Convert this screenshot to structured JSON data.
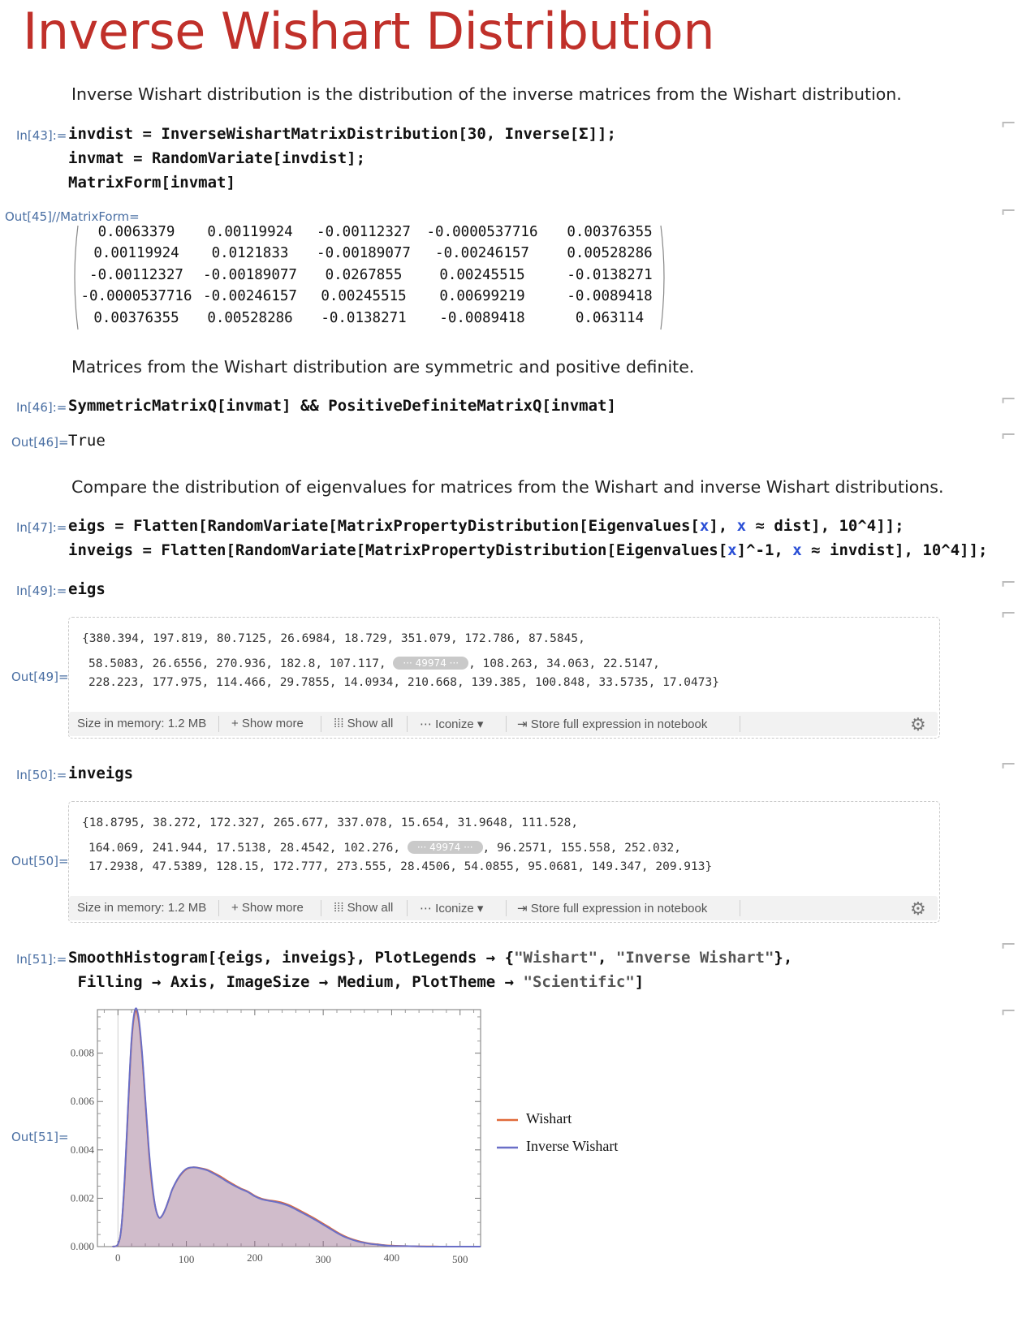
{
  "title": "Inverse Wishart Distribution",
  "texts": {
    "t1": "Inverse Wishart distribution is the distribution of the inverse matrices from the Wishart distribution.",
    "t2": "Matrices from the Wishart distribution are symmetric and positive definite.",
    "t3": "Compare the distribution of eigenvalues for matrices from the Wishart and inverse Wishart distributions."
  },
  "labels": {
    "in43": "In[43]:=",
    "out45": "Out[45]//MatrixForm=",
    "in46": "In[46]:=",
    "out46": "Out[46]=",
    "in47": "In[47]:=",
    "in49": "In[49]:=",
    "out49": "Out[49]=",
    "in50": "In[50]:=",
    "out50": "Out[50]=",
    "in51": "In[51]:=",
    "out51": "Out[51]="
  },
  "code": {
    "c43a": "invdist = InverseWishartMatrixDistribution[30, Inverse[Σ]];",
    "c43b": "invmat = RandomVariate[invdist];",
    "c43c": "MatrixForm[invmat]",
    "c46": "SymmetricMatrixQ[invmat] && PositiveDefiniteMatrixQ[invmat]",
    "out46": "True",
    "c47a_1": "eigs = Flatten[RandomVariate[MatrixPropertyDistribution[Eigenvalues[",
    "c47a_x1": "x",
    "c47a_2": "], ",
    "c47a_x2": "x",
    "c47a_3": " ≈ dist], 10^4]];",
    "c47b_1": "inveigs = Flatten[RandomVariate[MatrixPropertyDistribution[Eigenvalues[",
    "c47b_x1": "x",
    "c47b_2": "]^-1, ",
    "c47b_x2": "x",
    "c47b_3": " ≈ invdist], 10^4]];",
    "c49": "eigs",
    "c50": "inveigs",
    "c51a_1": "SmoothHistogram[{eigs, inveigs}, PlotLegends → {",
    "c51a_s1": "\"Wishart\"",
    "c51a_2": ", ",
    "c51a_s2": "\"Inverse Wishart\"",
    "c51a_3": "},",
    "c51b_1": " Filling → Axis, ImageSize → Medium, PlotTheme → ",
    "c51b_s": "\"Scientific\"",
    "c51b_2": "]"
  },
  "matrix": [
    [
      "0.0063379",
      "0.00119924",
      "-0.00112327",
      "-0.0000537716",
      "0.00376355"
    ],
    [
      "0.00119924",
      "0.0121833",
      "-0.00189077",
      "-0.00246157",
      "0.00528286"
    ],
    [
      "-0.00112327",
      "-0.00189077",
      "0.0267855",
      "0.00245515",
      "-0.0138271"
    ],
    [
      "-0.0000537716",
      "-0.00246157",
      "0.00245515",
      "0.00699219",
      "-0.0089418"
    ],
    [
      "0.00376355",
      "0.00528286",
      "-0.0138271",
      "-0.0089418",
      "0.063114"
    ]
  ],
  "eigs_summary": {
    "line1": "{380.394, 197.819, 80.7125, 26.6984, 18.729, 351.079, 172.786, 87.5845,",
    "line2a": "58.5083, 26.6556, 270.936, 182.8, 107.117, ",
    "pill": "··· 49974 ···",
    "line2b": ", 108.263, 34.063, 22.5147,",
    "line3": "228.223, 177.975, 114.466, 29.7855, 14.0934, 210.668, 139.385, 100.848, 33.5735, 17.0473}"
  },
  "inveigs_summary": {
    "line1": "{18.8795, 38.272, 172.327, 265.677, 337.078, 15.654, 31.9648, 111.528,",
    "line2a": "164.069, 241.944, 17.5138, 28.4542, 102.276, ",
    "pill": "··· 49974 ···",
    "line2b": ", 96.2571, 155.558, 252.032,",
    "line3": "17.2938, 47.5389, 128.15, 172.777, 273.555, 28.4506, 54.0855, 95.0681, 149.347, 209.913}"
  },
  "toolbar": {
    "size": "Size in memory: 1.2 MB",
    "show_more": "+ Show more",
    "show_all": "⁞⁞⁞ Show all",
    "iconize": "⋯ Iconize ▾",
    "store": "⇥ Store full expression in notebook",
    "gear": "⚙"
  },
  "chart_data": {
    "type": "area",
    "title": "",
    "xlabel": "",
    "ylabel": "",
    "xlim": [
      -30,
      530
    ],
    "ylim": [
      0,
      0.0098
    ],
    "x_ticks": [
      0,
      100,
      200,
      300,
      400,
      500
    ],
    "y_ticks": [
      "0.000",
      "0.002",
      "0.004",
      "0.006",
      "0.008"
    ],
    "y_tick_values": [
      0,
      0.002,
      0.004,
      0.006,
      0.008
    ],
    "legend_position": "right",
    "filling": "Axis",
    "series": [
      {
        "name": "Wishart",
        "color": "#e06a3a",
        "x": [
          -8,
          0,
          5,
          10,
          15,
          20,
          25,
          30,
          35,
          40,
          45,
          50,
          55,
          60,
          65,
          70,
          75,
          80,
          90,
          100,
          110,
          120,
          130,
          140,
          150,
          160,
          170,
          180,
          190,
          200,
          210,
          220,
          230,
          240,
          250,
          260,
          270,
          280,
          290,
          300,
          310,
          320,
          330,
          340,
          350,
          360,
          370,
          380,
          390,
          400,
          420,
          440,
          460,
          480,
          500,
          530
        ],
        "y": [
          0.0,
          0.0001,
          0.0008,
          0.0028,
          0.0058,
          0.0085,
          0.0097,
          0.0094,
          0.008,
          0.006,
          0.004,
          0.0025,
          0.0016,
          0.0012,
          0.0013,
          0.0016,
          0.002,
          0.0024,
          0.0029,
          0.0032,
          0.00328,
          0.00325,
          0.00318,
          0.00305,
          0.0029,
          0.00272,
          0.00255,
          0.0024,
          0.00228,
          0.0021,
          0.00198,
          0.00192,
          0.00188,
          0.00182,
          0.00172,
          0.00158,
          0.00143,
          0.00128,
          0.00112,
          0.00095,
          0.00078,
          0.0006,
          0.00045,
          0.00033,
          0.00024,
          0.00017,
          0.00012,
          9e-05,
          6e-05,
          4e-05,
          2e-05,
          1e-05,
          1e-05,
          0.0,
          0.0,
          0.0
        ]
      },
      {
        "name": "Inverse Wishart",
        "color": "#6a6fc7",
        "x": [
          -8,
          0,
          5,
          10,
          15,
          20,
          25,
          30,
          35,
          40,
          45,
          50,
          55,
          60,
          65,
          70,
          75,
          80,
          90,
          100,
          110,
          120,
          130,
          140,
          150,
          160,
          170,
          180,
          190,
          200,
          210,
          220,
          230,
          240,
          250,
          260,
          270,
          280,
          290,
          300,
          310,
          320,
          330,
          340,
          350,
          360,
          370,
          380,
          390,
          400,
          420,
          440,
          460,
          480,
          500,
          530
        ],
        "y": [
          0.0,
          0.0001,
          0.0008,
          0.0029,
          0.0059,
          0.0086,
          0.0098,
          0.0095,
          0.0081,
          0.0061,
          0.0041,
          0.0026,
          0.0016,
          0.0012,
          0.0013,
          0.0016,
          0.002,
          0.0024,
          0.00292,
          0.00322,
          0.00328,
          0.00324,
          0.00316,
          0.00302,
          0.00286,
          0.00268,
          0.00252,
          0.00238,
          0.00226,
          0.00208,
          0.00196,
          0.0019,
          0.00185,
          0.00178,
          0.00168,
          0.00154,
          0.00139,
          0.00124,
          0.00108,
          0.00091,
          0.00074,
          0.00057,
          0.00042,
          0.00031,
          0.00022,
          0.00016,
          0.00011,
          8e-05,
          5e-05,
          3e-05,
          2e-05,
          1e-05,
          0.0,
          0.0,
          0.0,
          0.0
        ]
      }
    ]
  },
  "colors": {
    "title": "#c0302a",
    "label": "#4a6fa3",
    "blue": "#2a4fd6"
  }
}
